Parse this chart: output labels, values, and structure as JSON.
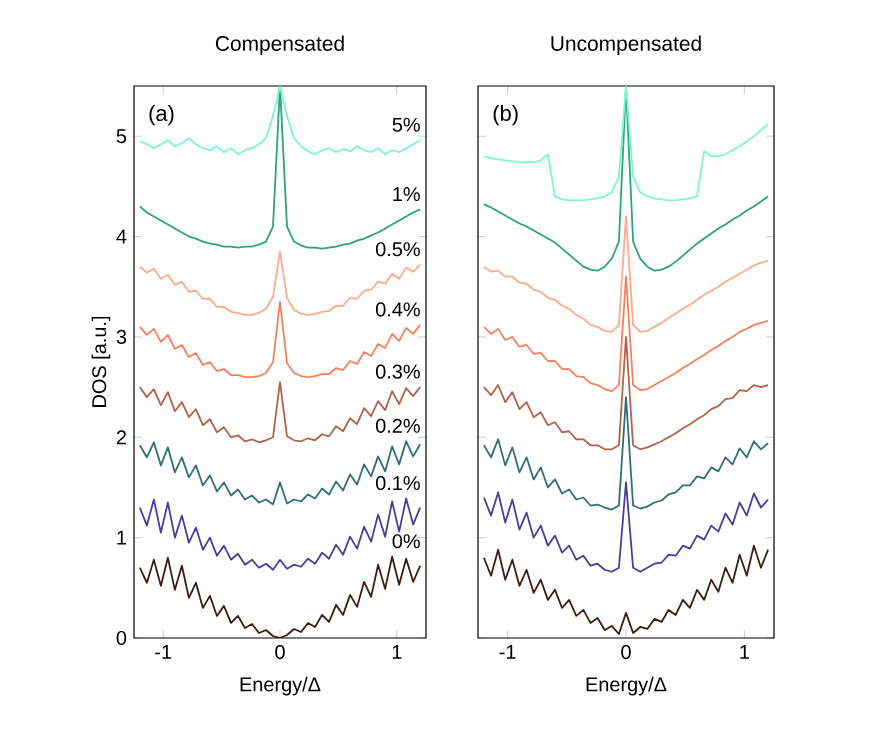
{
  "chart_data": [
    {
      "type": "line",
      "title": "Compensated",
      "xlabel": "Energy/Δ",
      "ylabel": "DOS [a.u.]",
      "annotations": [
        "(a)"
      ],
      "x": [
        -1.2,
        -1.14,
        -1.08,
        -1.02,
        -0.96,
        -0.9,
        -0.84,
        -0.78,
        -0.72,
        -0.66,
        -0.6,
        -0.54,
        -0.48,
        -0.42,
        -0.36,
        -0.3,
        -0.24,
        -0.18,
        -0.12,
        -0.06,
        0,
        0.06,
        0.12,
        0.18,
        0.24,
        0.3,
        0.36,
        0.42,
        0.48,
        0.54,
        0.6,
        0.66,
        0.72,
        0.78,
        0.84,
        0.9,
        0.96,
        1.02,
        1.08,
        1.14,
        1.2
      ],
      "xlim": [
        -1.25,
        1.25
      ],
      "xticks": [
        -1,
        0,
        1
      ],
      "ylim": [
        0,
        5.5
      ],
      "yticks": [
        0,
        1,
        2,
        3,
        4,
        5
      ],
      "series": [
        {
          "name": "0%",
          "color": "#3d1a14",
          "values": [
            0.7,
            0.55,
            0.78,
            0.52,
            0.8,
            0.48,
            0.72,
            0.4,
            0.55,
            0.3,
            0.42,
            0.22,
            0.32,
            0.15,
            0.22,
            0.1,
            0.14,
            0.05,
            0.08,
            0.02,
            0.0,
            0.03,
            0.09,
            0.06,
            0.15,
            0.11,
            0.23,
            0.16,
            0.33,
            0.23,
            0.43,
            0.31,
            0.56,
            0.41,
            0.73,
            0.49,
            0.81,
            0.53,
            0.79,
            0.56,
            0.72
          ]
        },
        {
          "name": "0.1%",
          "color": "#4b3b9b",
          "values": [
            1.3,
            1.12,
            1.38,
            1.05,
            1.35,
            1.0,
            1.22,
            0.95,
            1.1,
            0.88,
            1.0,
            0.82,
            0.92,
            0.78,
            0.84,
            0.73,
            0.78,
            0.7,
            0.74,
            0.68,
            0.78,
            0.69,
            0.73,
            0.71,
            0.79,
            0.74,
            0.85,
            0.79,
            0.93,
            0.83,
            1.01,
            0.89,
            1.11,
            0.96,
            1.23,
            1.01,
            1.36,
            1.06,
            1.39,
            1.13,
            1.3
          ]
        },
        {
          "name": "0.2%",
          "color": "#2f6e7a",
          "values": [
            1.92,
            1.8,
            1.95,
            1.72,
            1.9,
            1.65,
            1.8,
            1.6,
            1.72,
            1.52,
            1.62,
            1.46,
            1.55,
            1.42,
            1.48,
            1.38,
            1.42,
            1.35,
            1.38,
            1.33,
            1.55,
            1.34,
            1.38,
            1.36,
            1.43,
            1.39,
            1.49,
            1.43,
            1.56,
            1.47,
            1.63,
            1.53,
            1.73,
            1.61,
            1.81,
            1.66,
            1.91,
            1.73,
            1.96,
            1.81,
            1.93
          ]
        },
        {
          "name": "0.3%",
          "color": "#b0634c",
          "values": [
            2.5,
            2.4,
            2.48,
            2.32,
            2.45,
            2.26,
            2.35,
            2.2,
            2.28,
            2.12,
            2.18,
            2.05,
            2.1,
            2.0,
            2.02,
            1.96,
            1.98,
            1.95,
            1.97,
            2.0,
            2.55,
            2.01,
            1.97,
            1.96,
            1.99,
            1.97,
            2.03,
            2.01,
            2.11,
            2.06,
            2.19,
            2.13,
            2.29,
            2.21,
            2.36,
            2.27,
            2.46,
            2.33,
            2.49,
            2.41,
            2.5
          ]
        },
        {
          "name": "0.4%",
          "color": "#f5805e",
          "values": [
            3.1,
            3.02,
            3.08,
            2.95,
            3.02,
            2.88,
            2.92,
            2.8,
            2.84,
            2.72,
            2.75,
            2.66,
            2.68,
            2.62,
            2.62,
            2.6,
            2.6,
            2.61,
            2.64,
            2.75,
            3.35,
            2.74,
            2.64,
            2.61,
            2.6,
            2.61,
            2.63,
            2.63,
            2.69,
            2.67,
            2.76,
            2.73,
            2.85,
            2.81,
            2.93,
            2.89,
            3.03,
            2.96,
            3.09,
            3.03,
            3.12
          ]
        },
        {
          "name": "0.5%",
          "color": "#fca98e",
          "values": [
            3.7,
            3.64,
            3.68,
            3.58,
            3.62,
            3.52,
            3.55,
            3.45,
            3.46,
            3.38,
            3.38,
            3.3,
            3.3,
            3.25,
            3.24,
            3.22,
            3.22,
            3.24,
            3.28,
            3.4,
            3.85,
            3.39,
            3.27,
            3.23,
            3.22,
            3.23,
            3.25,
            3.26,
            3.31,
            3.31,
            3.39,
            3.38,
            3.46,
            3.47,
            3.55,
            3.53,
            3.63,
            3.58,
            3.69,
            3.65,
            3.72
          ]
        },
        {
          "name": "1%",
          "color": "#2aa37e",
          "values": [
            4.3,
            4.24,
            4.2,
            4.16,
            4.12,
            4.08,
            4.04,
            4.0,
            3.98,
            3.95,
            3.93,
            3.92,
            3.9,
            3.9,
            3.89,
            3.9,
            3.9,
            3.92,
            3.95,
            4.1,
            5.5,
            4.1,
            3.95,
            3.91,
            3.89,
            3.89,
            3.88,
            3.89,
            3.9,
            3.92,
            3.93,
            3.96,
            3.98,
            4.01,
            4.04,
            4.08,
            4.12,
            4.16,
            4.2,
            4.24,
            4.27
          ]
        },
        {
          "name": "5%",
          "color": "#7cf5d2",
          "values": [
            4.95,
            4.92,
            4.88,
            4.92,
            4.96,
            4.9,
            4.93,
            4.98,
            4.92,
            4.88,
            4.86,
            4.9,
            4.84,
            4.88,
            4.82,
            4.86,
            4.88,
            4.92,
            4.98,
            5.2,
            5.5,
            5.2,
            4.98,
            4.9,
            4.85,
            4.82,
            4.86,
            4.88,
            4.84,
            4.87,
            4.85,
            4.9,
            4.86,
            4.84,
            4.88,
            4.82,
            4.86,
            4.84,
            4.88,
            4.92,
            4.96
          ]
        }
      ]
    },
    {
      "type": "line",
      "title": "Uncompensated",
      "xlabel": "Energy/Δ",
      "annotations": [
        "(b)"
      ],
      "tick_labels": "x",
      "x": [
        -1.2,
        -1.14,
        -1.08,
        -1.02,
        -0.96,
        -0.9,
        -0.84,
        -0.78,
        -0.72,
        -0.66,
        -0.6,
        -0.54,
        -0.48,
        -0.42,
        -0.36,
        -0.3,
        -0.24,
        -0.18,
        -0.12,
        -0.06,
        0,
        0.06,
        0.12,
        0.18,
        0.24,
        0.3,
        0.36,
        0.42,
        0.48,
        0.54,
        0.6,
        0.66,
        0.72,
        0.78,
        0.84,
        0.9,
        0.96,
        1.02,
        1.08,
        1.14,
        1.2
      ],
      "xlim": [
        -1.25,
        1.25
      ],
      "xticks": [
        -1,
        0,
        1
      ],
      "ylim": [
        0,
        5.5
      ],
      "yticks": [
        0,
        1,
        2,
        3,
        4,
        5
      ],
      "series": [
        {
          "color": "#3d1a14",
          "values": [
            0.8,
            0.62,
            0.88,
            0.58,
            0.78,
            0.52,
            0.68,
            0.45,
            0.58,
            0.38,
            0.48,
            0.3,
            0.38,
            0.22,
            0.28,
            0.15,
            0.2,
            0.08,
            0.12,
            0.04,
            0.25,
            0.05,
            0.11,
            0.09,
            0.19,
            0.16,
            0.28,
            0.23,
            0.38,
            0.3,
            0.48,
            0.38,
            0.58,
            0.46,
            0.7,
            0.55,
            0.83,
            0.62,
            0.92,
            0.7,
            0.88
          ]
        },
        {
          "color": "#4b3b9b",
          "values": [
            1.4,
            1.22,
            1.45,
            1.15,
            1.38,
            1.08,
            1.25,
            1.0,
            1.12,
            0.92,
            1.02,
            0.85,
            0.92,
            0.78,
            0.82,
            0.72,
            0.74,
            0.68,
            0.66,
            0.7,
            1.55,
            0.7,
            0.66,
            0.7,
            0.74,
            0.75,
            0.83,
            0.82,
            0.92,
            0.89,
            1.02,
            0.98,
            1.12,
            1.06,
            1.24,
            1.13,
            1.35,
            1.22,
            1.44,
            1.3,
            1.38
          ]
        },
        {
          "color": "#2f6e7a",
          "values": [
            1.92,
            1.8,
            1.98,
            1.72,
            1.9,
            1.65,
            1.8,
            1.58,
            1.7,
            1.5,
            1.58,
            1.44,
            1.48,
            1.38,
            1.4,
            1.32,
            1.33,
            1.3,
            1.28,
            1.32,
            2.4,
            1.32,
            1.29,
            1.31,
            1.35,
            1.37,
            1.43,
            1.45,
            1.52,
            1.52,
            1.61,
            1.59,
            1.7,
            1.66,
            1.8,
            1.73,
            1.89,
            1.8,
            1.96,
            1.88,
            1.94
          ]
        },
        {
          "color": "#b0634c",
          "values": [
            2.5,
            2.42,
            2.52,
            2.35,
            2.45,
            2.28,
            2.35,
            2.2,
            2.25,
            2.12,
            2.15,
            2.05,
            2.06,
            1.98,
            1.98,
            1.92,
            1.92,
            1.88,
            1.88,
            1.92,
            3.0,
            1.92,
            1.88,
            1.9,
            1.93,
            1.96,
            2.0,
            2.04,
            2.09,
            2.13,
            2.18,
            2.22,
            2.28,
            2.31,
            2.38,
            2.39,
            2.47,
            2.46,
            2.52,
            2.5,
            2.52
          ]
        },
        {
          "color": "#f5805e",
          "values": [
            3.1,
            3.03,
            3.08,
            2.97,
            3.0,
            2.9,
            2.92,
            2.83,
            2.84,
            2.76,
            2.76,
            2.68,
            2.68,
            2.61,
            2.6,
            2.54,
            2.52,
            2.48,
            2.46,
            2.52,
            3.6,
            2.52,
            2.47,
            2.48,
            2.52,
            2.56,
            2.6,
            2.64,
            2.69,
            2.73,
            2.78,
            2.82,
            2.87,
            2.91,
            2.96,
            3.0,
            3.05,
            3.08,
            3.12,
            3.14,
            3.16
          ]
        },
        {
          "color": "#fca98e",
          "values": [
            3.7,
            3.65,
            3.66,
            3.6,
            3.6,
            3.54,
            3.53,
            3.47,
            3.45,
            3.39,
            3.37,
            3.31,
            3.28,
            3.22,
            3.18,
            3.12,
            3.1,
            3.06,
            3.05,
            3.12,
            4.2,
            3.12,
            3.05,
            3.06,
            3.1,
            3.14,
            3.19,
            3.23,
            3.28,
            3.32,
            3.37,
            3.42,
            3.46,
            3.5,
            3.55,
            3.59,
            3.63,
            3.67,
            3.71,
            3.74,
            3.76
          ]
        },
        {
          "color": "#2aa37e",
          "values": [
            4.32,
            4.29,
            4.25,
            4.21,
            4.17,
            4.13,
            4.1,
            4.06,
            4.02,
            3.98,
            3.94,
            3.88,
            3.82,
            3.76,
            3.7,
            3.67,
            3.66,
            3.7,
            3.78,
            3.95,
            5.5,
            3.95,
            3.78,
            3.7,
            3.66,
            3.67,
            3.7,
            3.75,
            3.81,
            3.87,
            3.93,
            3.98,
            4.03,
            4.08,
            4.12,
            4.17,
            4.21,
            4.26,
            4.3,
            4.35,
            4.4
          ]
        },
        {
          "color": "#7cf5d2",
          "values": [
            4.8,
            4.78,
            4.77,
            4.76,
            4.75,
            4.74,
            4.74,
            4.74,
            4.76,
            4.82,
            4.4,
            4.37,
            4.36,
            4.36,
            4.36,
            4.37,
            4.38,
            4.4,
            4.44,
            4.6,
            5.5,
            4.6,
            4.44,
            4.4,
            4.38,
            4.37,
            4.36,
            4.36,
            4.37,
            4.38,
            4.4,
            4.85,
            4.8,
            4.8,
            4.82,
            4.86,
            4.9,
            4.95,
            5.0,
            5.06,
            5.12
          ]
        }
      ]
    }
  ]
}
